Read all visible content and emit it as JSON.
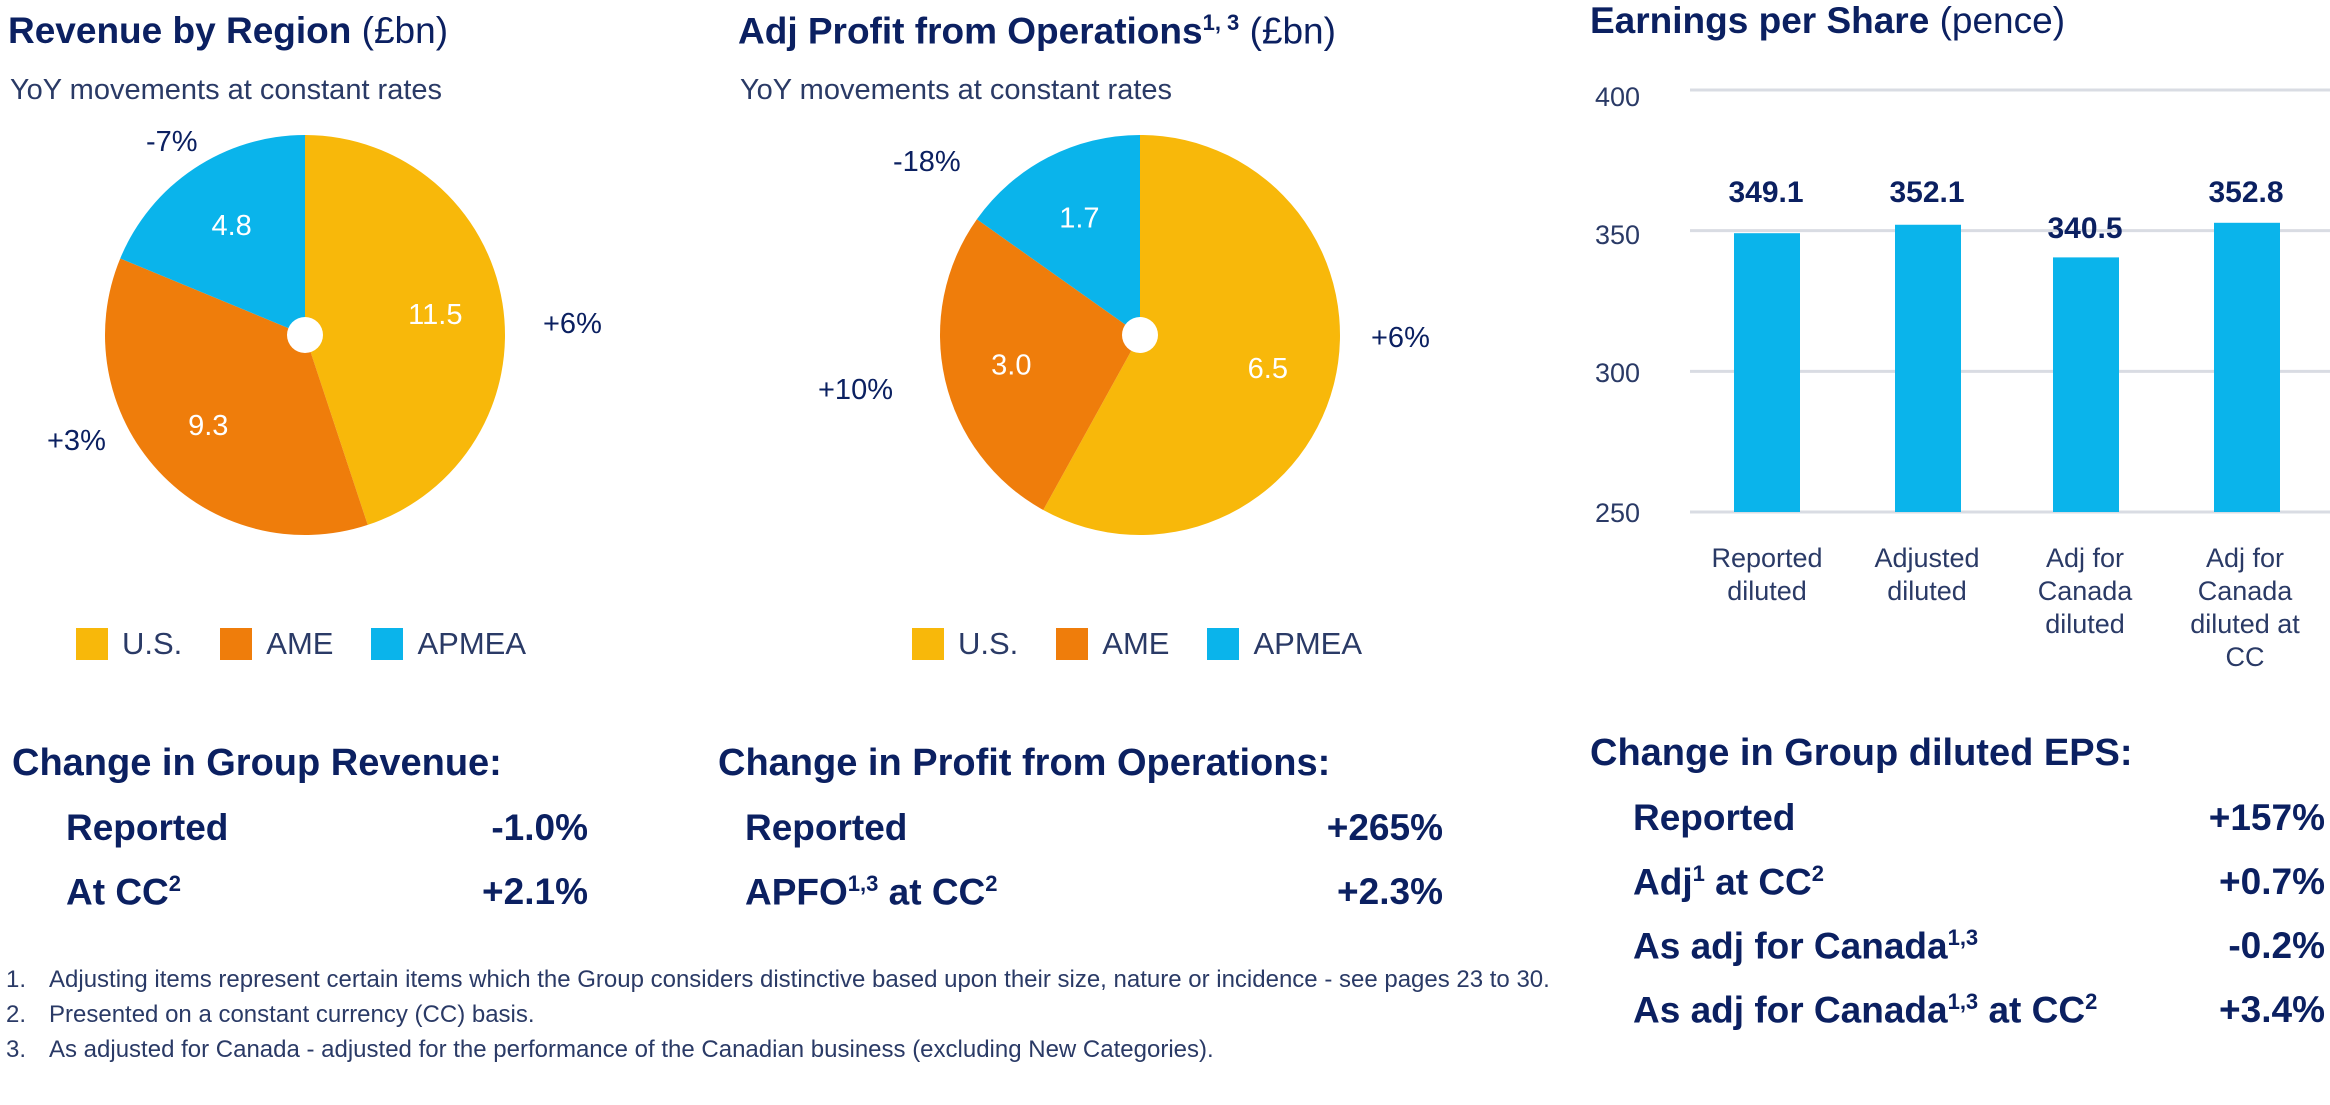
{
  "colors": {
    "us": "#F8B80A",
    "ame": "#EF7D0B",
    "apmea": "#0AB4EB",
    "navy": "#0B2061",
    "bar": "#0AB4EB",
    "grid": "#D9DCE3"
  },
  "panels": {
    "revenue": {
      "title": "Revenue by Region",
      "unit": "(£bn)",
      "subtitle": "YoY movements at constant rates"
    },
    "profit": {
      "title": "Adj Profit from Operations",
      "title_sup": "1, 3",
      "unit": "(£bn)",
      "subtitle": "YoY movements at constant rates"
    },
    "eps": {
      "title": "Earnings per Share",
      "unit": "(pence)"
    }
  },
  "legend": [
    {
      "label": "U.S.",
      "color": "#F8B80A"
    },
    {
      "label": "AME",
      "color": "#EF7D0B"
    },
    {
      "label": "APMEA",
      "color": "#0AB4EB"
    }
  ],
  "chart_data": [
    {
      "type": "pie",
      "title": "Revenue by Region (£bn)",
      "subtitle": "YoY movements at constant rates",
      "slices": [
        {
          "name": "U.S.",
          "value": 11.5,
          "label": "11.5",
          "change": "+6%",
          "color": "#F8B80A"
        },
        {
          "name": "AME",
          "value": 9.3,
          "label": "9.3",
          "change": "+3%",
          "color": "#EF7D0B"
        },
        {
          "name": "APMEA",
          "value": 4.8,
          "label": "4.8",
          "change": "-7%",
          "color": "#0AB4EB"
        }
      ]
    },
    {
      "type": "pie",
      "title": "Adj Profit from Operations (£bn)",
      "subtitle": "YoY movements at constant rates",
      "slices": [
        {
          "name": "U.S.",
          "value": 6.5,
          "label": "6.5",
          "change": "+6%",
          "color": "#F8B80A"
        },
        {
          "name": "AME",
          "value": 3.0,
          "label": "3.0",
          "change": "+10%",
          "color": "#EF7D0B"
        },
        {
          "name": "APMEA",
          "value": 1.7,
          "label": "1.7",
          "change": "-18%",
          "color": "#0AB4EB"
        }
      ]
    },
    {
      "type": "bar",
      "title": "Earnings per Share (pence)",
      "categories": [
        [
          "Reported",
          "diluted"
        ],
        [
          "Adjusted",
          "diluted"
        ],
        [
          "Adj for",
          "Canada",
          "diluted"
        ],
        [
          "Adj for",
          "Canada",
          "diluted at",
          "CC"
        ]
      ],
      "values": [
        349.1,
        352.1,
        340.5,
        352.8
      ],
      "value_labels": [
        "349.1",
        "352.1",
        "340.5",
        "352.8"
      ],
      "yticks": [
        "400",
        "350",
        "300",
        "250"
      ],
      "ylim": [
        250,
        400
      ],
      "grid": true
    }
  ],
  "changes": {
    "revenue": {
      "title": "Change in Group Revenue:",
      "rows": [
        {
          "label": "Reported",
          "value": "-1.0%"
        },
        {
          "label": "At CC",
          "sup": "2",
          "value": "+2.1%"
        }
      ]
    },
    "profit": {
      "title": "Change in Profit from Operations:",
      "rows": [
        {
          "label": "Reported",
          "value": "+265%"
        },
        {
          "label": "APFO",
          "sup": "1,3",
          "label2": " at CC",
          "sup2": "2",
          "value": "+2.3%"
        }
      ]
    },
    "eps": {
      "title": "Change in Group diluted EPS:",
      "rows": [
        {
          "label": "Reported",
          "value": "+157%"
        },
        {
          "label": "Adj",
          "sup": "1",
          "label2": " at CC",
          "sup2": "2",
          "value": "+0.7%"
        },
        {
          "label": "As adj for Canada",
          "sup": "1,3",
          "value": "-0.2%"
        },
        {
          "label": "As adj for Canada",
          "sup": "1,3",
          "label2": " at CC",
          "sup2": "2",
          "value": "+3.4%"
        }
      ]
    }
  },
  "footnotes": [
    {
      "num": "1.",
      "text": "Adjusting items represent certain items which the Group considers distinctive based upon their size, nature or incidence - see pages 23 to 30."
    },
    {
      "num": "2.",
      "text": "Presented on a constant currency (CC) basis."
    },
    {
      "num": "3.",
      "text": "As adjusted for Canada - adjusted for the performance of the Canadian business (excluding New Categories)."
    }
  ]
}
